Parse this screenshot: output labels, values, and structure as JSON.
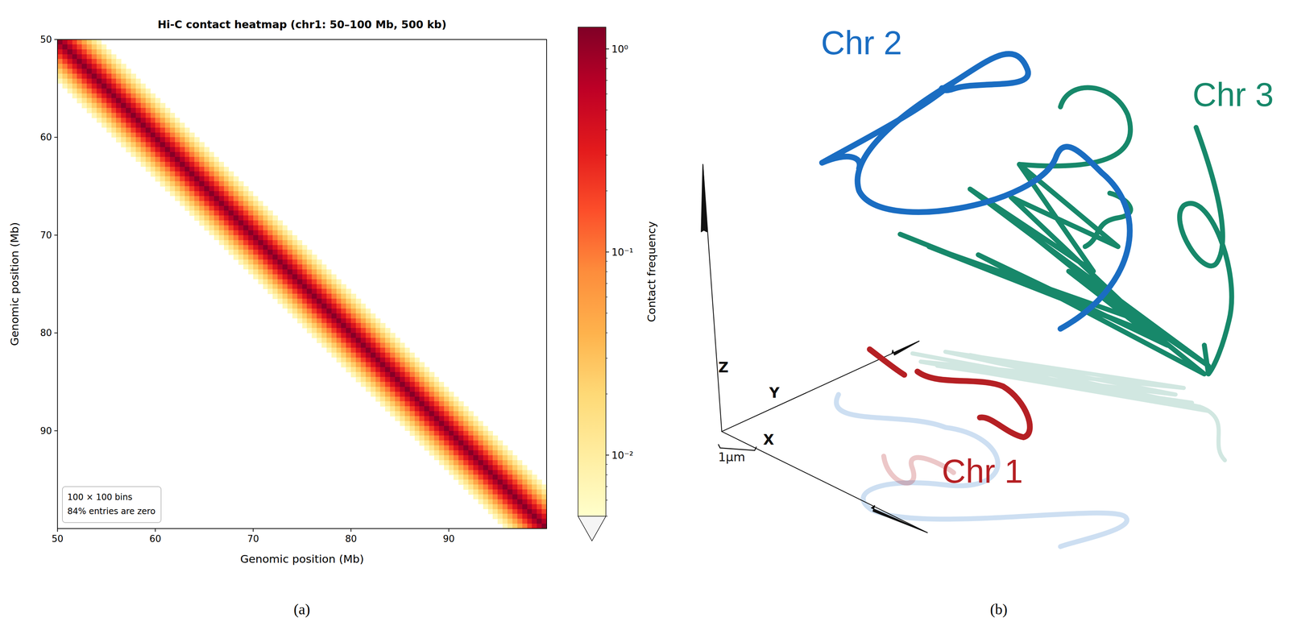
{
  "chart_data": [
    {
      "type": "heatmap",
      "panel_label": "(a)",
      "title": "Hi-C contact heatmap  (chr1: 50–100 Mb, 500 kb)",
      "x_label": "Genomic position (Mb)",
      "y_label": "Genomic position (Mb)",
      "xlim": [
        50,
        100
      ],
      "ylim": [
        100,
        50
      ],
      "xticks": [
        50,
        60,
        70,
        80,
        90
      ],
      "yticks": [
        50,
        60,
        70,
        80,
        90
      ],
      "grid_size": 100,
      "cells_by_offset": [
        1.2,
        0.7,
        0.38,
        0.2,
        0.1,
        0.05,
        0.025,
        0.013,
        0.007
      ],
      "annotation": [
        "100 × 100 bins",
        "84% entries are zero"
      ],
      "colorbar": {
        "label": "Contact frequency",
        "log": true,
        "range": [
          0.005,
          1.28
        ],
        "ticks": [
          {
            "value": 0.01,
            "label": "10⁻²"
          },
          {
            "value": 0.1,
            "label": "10⁻¹"
          },
          {
            "value": 1,
            "label": "10⁰"
          }
        ]
      }
    },
    {
      "type": "structure_3d",
      "panel_label": "(b)",
      "series": [
        {
          "name": "Chr 2",
          "color": "#1a6dc2"
        },
        {
          "name": "Chr 3",
          "color": "#17886a"
        },
        {
          "name": "Chr 1",
          "color": "#b52024"
        }
      ],
      "axis_labels": [
        "X",
        "Y",
        "Z"
      ],
      "scale_bar": "1µm"
    }
  ]
}
